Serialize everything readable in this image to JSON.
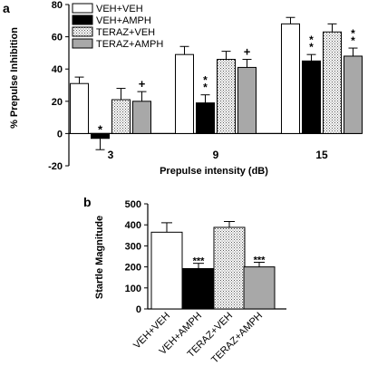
{
  "panels": [
    {
      "letter": "a"
    },
    {
      "letter": "b"
    }
  ],
  "chart_data": [
    {
      "type": "bar",
      "ylabel": "% Prepulse Inhibition",
      "xlabel": "Prepulse intensity  (dB)",
      "ylim": [
        -20,
        80
      ],
      "yticks": [
        -20,
        0,
        20,
        40,
        60,
        80
      ],
      "categories": [
        "3",
        "9",
        "15"
      ],
      "legend_position": "top-left",
      "series": [
        {
          "name": "VEH+VEH",
          "values": [
            31,
            49,
            68
          ],
          "errors": [
            4,
            5,
            4
          ],
          "fill": "#ffffff",
          "marks": [
            "",
            "",
            ""
          ]
        },
        {
          "name": "VEH+AMPH",
          "values": [
            -3,
            19,
            45
          ],
          "errors": [
            7,
            5,
            4
          ],
          "fill": "#000000",
          "marks": [
            "*",
            "**",
            "**"
          ]
        },
        {
          "name": "TERAZ+VEH",
          "values": [
            21,
            46,
            63
          ],
          "errors": [
            7,
            5,
            5
          ],
          "fill": "dots",
          "marks": [
            "",
            "",
            ""
          ]
        },
        {
          "name": "TERAZ+AMPH",
          "values": [
            20,
            41,
            48
          ],
          "errors": [
            6,
            5,
            5
          ],
          "fill": "#a8a8a8",
          "marks": [
            "+",
            "+",
            "**"
          ]
        }
      ]
    },
    {
      "type": "bar",
      "ylabel": "Startle Magnitude",
      "xlabel": "",
      "ylim": [
        0,
        500
      ],
      "yticks": [
        0,
        100,
        200,
        300,
        400,
        500
      ],
      "categories": [
        "VEH+VEH",
        "VEH+AMPH",
        "TERAZ+VEH",
        "TERAZ+AMPH"
      ],
      "values": [
        365,
        192,
        388,
        200
      ],
      "errors": [
        45,
        25,
        28,
        22
      ],
      "fills": [
        "#ffffff",
        "#000000",
        "dots",
        "#a8a8a8"
      ],
      "marks": [
        "",
        "***",
        "",
        "***"
      ]
    }
  ]
}
